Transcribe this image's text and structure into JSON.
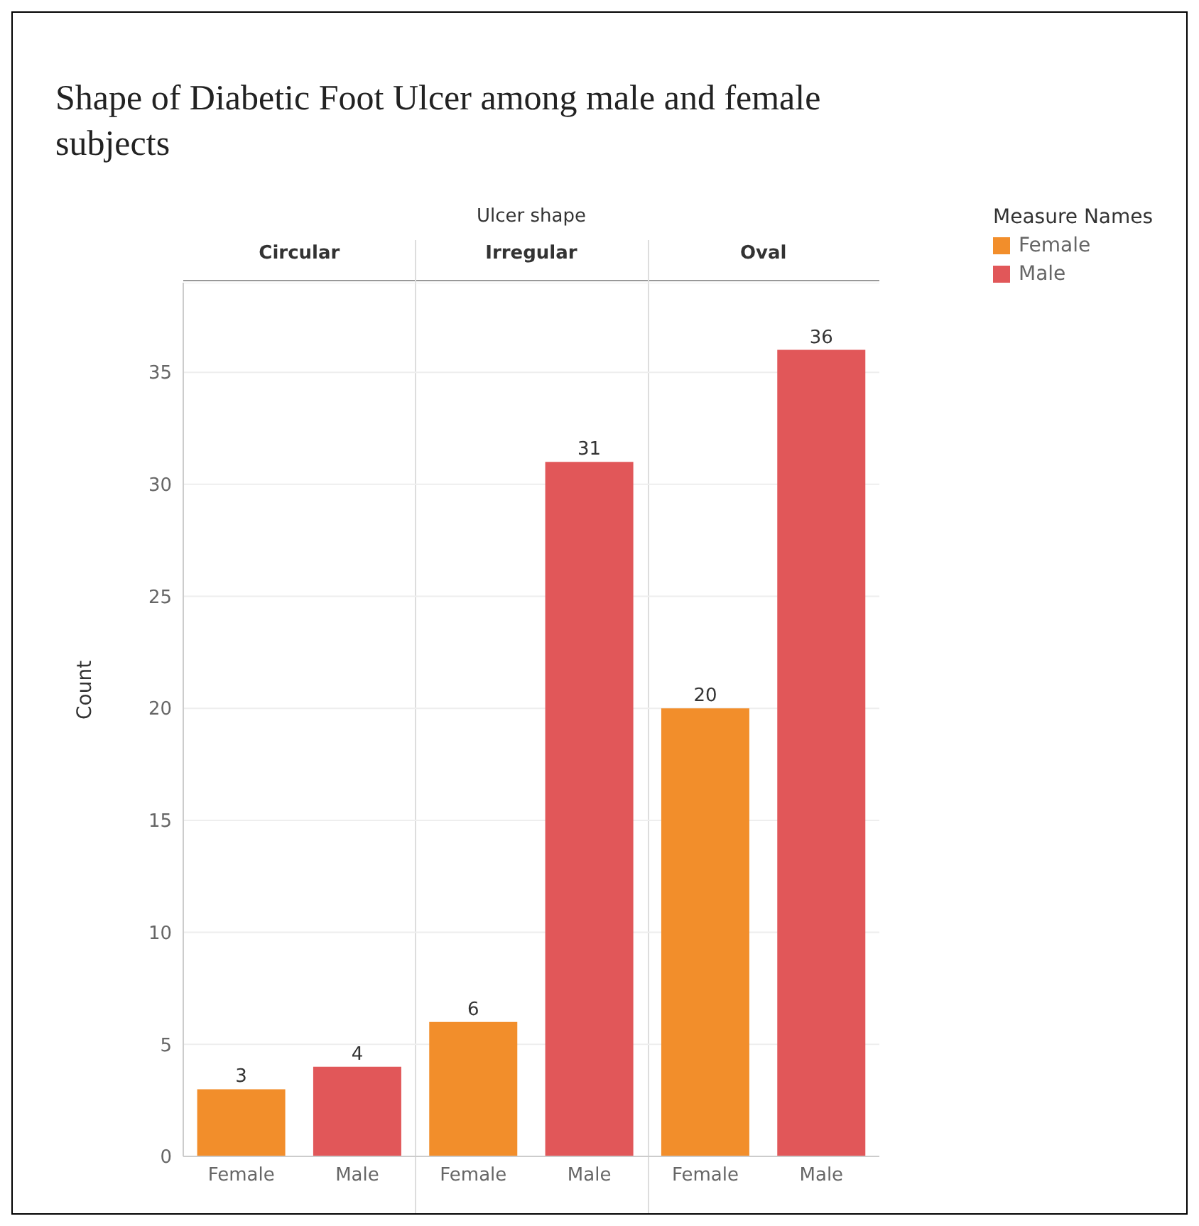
{
  "chart_data": {
    "type": "bar",
    "title": "Shape of Diabetic Foot Ulcer among male and female subjects",
    "ylabel": "Count",
    "legend_title": "Measure Names",
    "categories": [
      "Female",
      "Male",
      "Female",
      "Male",
      "Female",
      "Male"
    ],
    "series": [
      {
        "name": "Female",
        "color": "#f28e2b",
        "values": [
          3,
          null,
          6,
          null,
          20,
          null
        ]
      },
      {
        "name": "Male",
        "color": "#e15759",
        "values": [
          null,
          4,
          null,
          31,
          null,
          36
        ]
      }
    ],
    "annotations": [
      "Ulcer shape",
      "Circular",
      "Irregular",
      "Oval"
    ],
    "ylim": [
      0,
      39
    ],
    "yticks": [
      0,
      5,
      10,
      15,
      20,
      25,
      30,
      35
    ],
    "grid": "y",
    "legend": "top right",
    "data_labels": true
  }
}
